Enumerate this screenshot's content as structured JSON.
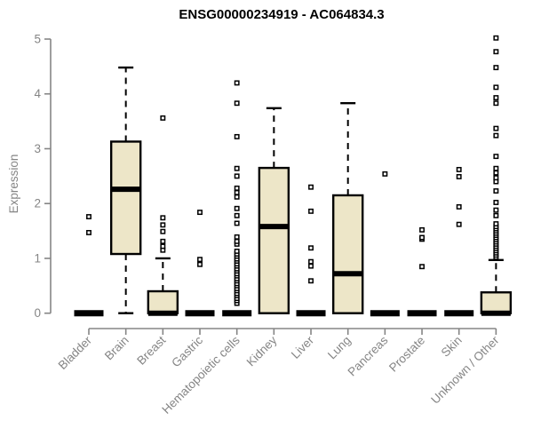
{
  "title": "ENSG00000234919 - AC064834.3",
  "chart_data": {
    "type": "boxplot",
    "title": "ENSG00000234919 - AC064834.3",
    "xlabel": "",
    "ylabel": "Expression",
    "ylim": [
      0,
      5
    ],
    "yticks": [
      0,
      1,
      2,
      3,
      4,
      5
    ],
    "grid": false,
    "legend": "none",
    "categories": [
      "Bladder",
      "Brain",
      "Breast",
      "Gastric",
      "Hematopoietic cells",
      "Kidney",
      "Liver",
      "Lung",
      "Pancreas",
      "Prostate",
      "Skin",
      "Unknown / Other"
    ],
    "series": [
      {
        "name": "Bladder",
        "min": 0,
        "q1": 0,
        "median": 0,
        "q3": 0,
        "max": 0,
        "outliers": [
          1.47,
          1.76
        ]
      },
      {
        "name": "Brain",
        "min": 0,
        "q1": 1.08,
        "median": 2.26,
        "q3": 3.13,
        "max": 4.48,
        "outliers": []
      },
      {
        "name": "Breast",
        "min": 0,
        "q1": 0,
        "median": 0,
        "q3": 0.4,
        "max": 1.0,
        "outliers": [
          1.15,
          1.22,
          1.31,
          1.49,
          1.61,
          1.74,
          3.56
        ]
      },
      {
        "name": "Gastric",
        "min": 0,
        "q1": 0,
        "median": 0,
        "q3": 0,
        "max": 0,
        "outliers": [
          0.89,
          0.98,
          1.84
        ]
      },
      {
        "name": "Hematopoietic cells",
        "min": 0,
        "q1": 0,
        "median": 0,
        "q3": 0,
        "max": 0,
        "outliers": [
          0.18,
          0.23,
          0.27,
          0.32,
          0.36,
          0.41,
          0.45,
          0.5,
          0.54,
          0.59,
          0.63,
          0.68,
          0.72,
          0.77,
          0.81,
          0.86,
          0.9,
          0.95,
          0.99,
          1.04,
          1.08,
          1.13,
          1.26,
          1.31,
          1.39,
          1.64,
          1.78,
          1.91,
          2.12,
          2.2,
          2.28,
          2.5,
          2.64,
          3.22,
          3.83,
          4.2
        ]
      },
      {
        "name": "Kidney",
        "min": 0,
        "q1": 0,
        "median": 1.58,
        "q3": 2.65,
        "max": 3.74,
        "outliers": []
      },
      {
        "name": "Liver",
        "min": 0,
        "q1": 0,
        "median": 0,
        "q3": 0,
        "max": 0,
        "outliers": [
          0.59,
          0.86,
          0.94,
          1.19,
          1.86,
          2.3
        ]
      },
      {
        "name": "Lung",
        "min": 0,
        "q1": 0,
        "median": 0.72,
        "q3": 2.15,
        "max": 3.83,
        "outliers": []
      },
      {
        "name": "Pancreas",
        "min": 0,
        "q1": 0,
        "median": 0,
        "q3": 0,
        "max": 0,
        "outliers": [
          2.54
        ]
      },
      {
        "name": "Prostate",
        "min": 0,
        "q1": 0,
        "median": 0,
        "q3": 0,
        "max": 0,
        "outliers": [
          0.85,
          1.35,
          1.38,
          1.52
        ]
      },
      {
        "name": "Skin",
        "min": 0,
        "q1": 0,
        "median": 0,
        "q3": 0,
        "max": 0,
        "outliers": [
          1.62,
          1.94,
          2.49,
          2.62
        ]
      },
      {
        "name": "Unknown / Other",
        "min": 0,
        "q1": 0,
        "median": 0,
        "q3": 0.38,
        "max": 0.97,
        "outliers": [
          1.02,
          1.06,
          1.1,
          1.14,
          1.18,
          1.22,
          1.26,
          1.3,
          1.34,
          1.38,
          1.42,
          1.46,
          1.5,
          1.54,
          1.58,
          1.63,
          1.78,
          1.88,
          2.02,
          2.23,
          2.4,
          2.47,
          2.56,
          2.64,
          2.86,
          3.24,
          3.37,
          3.83,
          3.93,
          4.12,
          4.48,
          4.77,
          5.02
        ]
      }
    ],
    "colors": {
      "box_fill": "#EDE6C8",
      "box_border": "#000000",
      "median": "#000000",
      "whisker": "#000000",
      "outlier_fill": "#ffffff",
      "outlier_border": "#000000",
      "axis": "#858585",
      "tick_label": "#858585",
      "title": "#000000",
      "background": "#ffffff"
    }
  }
}
